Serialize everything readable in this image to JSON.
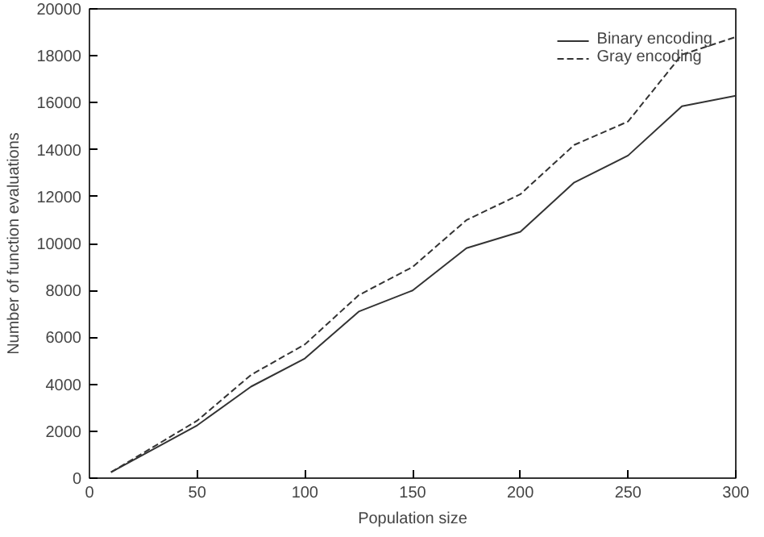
{
  "chart_data": {
    "type": "line",
    "xlabel": "Population size",
    "ylabel": "Number of function evaluations",
    "x": [
      10,
      50,
      75,
      100,
      125,
      150,
      175,
      200,
      225,
      250,
      275,
      300
    ],
    "series": [
      {
        "name": "Binary encoding",
        "color": "#333333",
        "line_style": "solid",
        "values": [
          250,
          2250,
          3900,
          5100,
          7100,
          8000,
          9800,
          10500,
          12600,
          13750,
          15850,
          16300
        ]
      },
      {
        "name": "Gray encoding",
        "color": "#333333",
        "line_style": "dashed",
        "values": [
          250,
          2450,
          4400,
          5700,
          7800,
          9000,
          11000,
          12100,
          14200,
          15200,
          18050,
          18800
        ]
      }
    ],
    "xlim": [
      0,
      300
    ],
    "ylim": [
      0,
      20000
    ],
    "xticks": [
      0,
      50,
      100,
      150,
      200,
      250,
      300
    ],
    "yticks": [
      0,
      2000,
      4000,
      6000,
      8000,
      10000,
      12000,
      14000,
      16000,
      18000,
      20000
    ],
    "grid": false,
    "legend": "top right",
    "marker": "none"
  }
}
